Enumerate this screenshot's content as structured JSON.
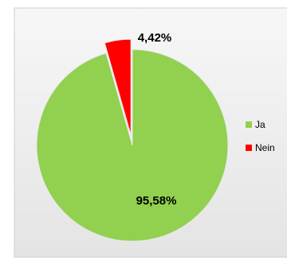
{
  "chart_data": {
    "type": "pie",
    "slices": [
      {
        "label": "Ja",
        "value": 95.58,
        "data_label": "95,58%",
        "color": "#92d050"
      },
      {
        "label": "Nein",
        "value": 4.42,
        "data_label": "4,42%",
        "color": "#ff0000",
        "exploded": true
      }
    ],
    "legend": {
      "placement": "right",
      "entries": [
        "Ja",
        "Nein"
      ]
    },
    "background": "#eeeeee",
    "border_color": "#cfcfcf"
  }
}
